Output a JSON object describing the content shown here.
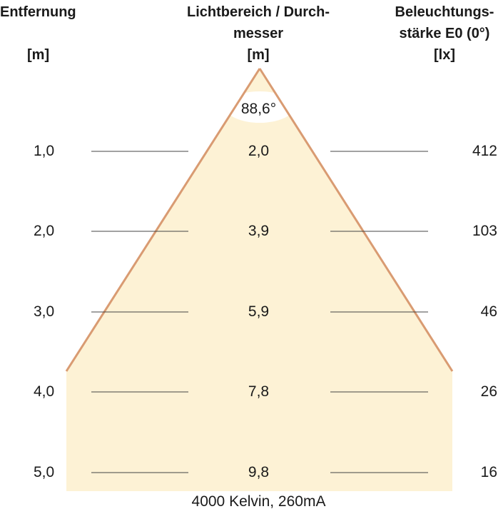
{
  "headers": {
    "distance": {
      "label": "Entfernung",
      "unit": "[m]"
    },
    "diameter": {
      "line1": "Lichtbereich / Durch-",
      "line2": "messer",
      "unit": "[m]"
    },
    "illuminance": {
      "line1": "Beleuchtungs-",
      "line2": "stärke E0 (0°)",
      "unit": "[lx]"
    }
  },
  "beam_angle": "88,6°",
  "rows": [
    {
      "distance": "1,0",
      "diameter": "2,0",
      "illuminance": "412"
    },
    {
      "distance": "2,0",
      "diameter": "3,9",
      "illuminance": "103"
    },
    {
      "distance": "3,0",
      "diameter": "5,9",
      "illuminance": "46"
    },
    {
      "distance": "4,0",
      "diameter": "7,8",
      "illuminance": "26"
    },
    {
      "distance": "5,0",
      "diameter": "9,8",
      "illuminance": "16"
    }
  ],
  "footer": "4000 Kelvin, 260mA",
  "colors": {
    "cone_fill": "#fdf2d5",
    "cone_edge": "#d99b72",
    "row_line": "#444444"
  }
}
